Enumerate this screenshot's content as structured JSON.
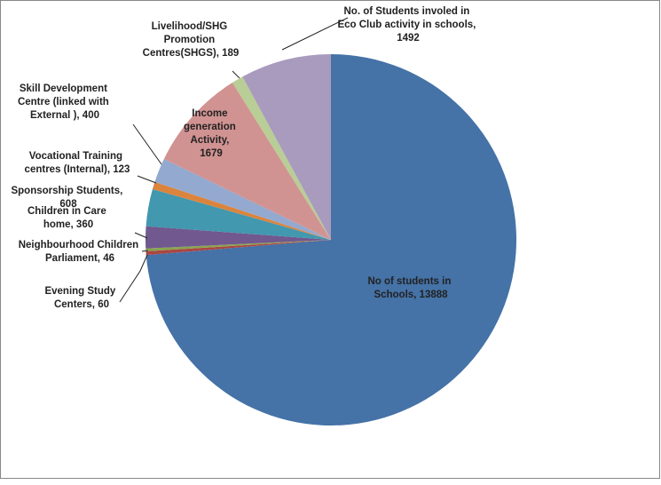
{
  "chart_data": {
    "type": "pie",
    "values": [
      13888,
      60,
      46,
      360,
      608,
      123,
      400,
      1679,
      189,
      1492
    ],
    "value_labels": [
      "No of students in Schools, 13888",
      "Evening Study Centers, 60",
      "Neighbourhood Children Parliament, 46",
      "Children in Care home, 360",
      "Sponsorship Students, 608",
      "Vocational Training centres (Internal), 123",
      "Skill Development Centre (linked with External ), 400",
      "Income generation Activity, 1679",
      "Livelihood/SHG Promotion Centres(SHGS), 189",
      "No. of Students involed in Eco Club activity in schools, 1492"
    ],
    "colors": [
      "#4572A7",
      "#AA4643",
      "#89A54E",
      "#71588F",
      "#4198AF",
      "#DB843D",
      "#93A9CF",
      "#D19392",
      "#B9CD96",
      "#A99BBD"
    ]
  }
}
